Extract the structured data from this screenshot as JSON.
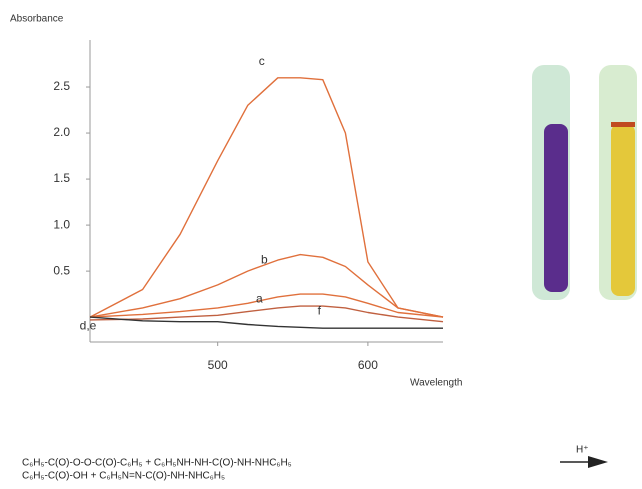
{
  "chart_data": {
    "type": "line",
    "y_label": "Absorbance",
    "x_label": "Wavelength",
    "x": [
      415,
      450,
      475,
      500,
      520,
      540,
      555,
      570,
      585,
      600,
      620,
      650
    ],
    "series": [
      {
        "name": "c",
        "color": "#e0703c",
        "values": [
          0.0,
          0.3,
          0.9,
          1.7,
          2.3,
          2.6,
          2.6,
          2.58,
          2.0,
          0.6,
          0.1,
          0.0
        ]
      },
      {
        "name": "b",
        "color": "#e0703c",
        "values": [
          0.0,
          0.1,
          0.2,
          0.35,
          0.5,
          0.62,
          0.68,
          0.65,
          0.55,
          0.35,
          0.1,
          0.0
        ]
      },
      {
        "name": "a",
        "color": "#e0703c",
        "values": [
          0.0,
          0.03,
          0.06,
          0.1,
          0.15,
          0.22,
          0.25,
          0.25,
          0.22,
          0.15,
          0.05,
          0.0
        ]
      },
      {
        "name": "f",
        "color": "#c06040",
        "values": [
          -0.03,
          -0.02,
          0.0,
          0.02,
          0.06,
          0.1,
          0.12,
          0.12,
          0.1,
          0.05,
          0.0,
          -0.05
        ]
      },
      {
        "name": "d,e",
        "color": "#333333",
        "values": [
          0.0,
          -0.04,
          -0.05,
          -0.05,
          -0.08,
          -0.1,
          -0.11,
          -0.12,
          -0.12,
          -0.12,
          -0.12,
          -0.12
        ]
      }
    ],
    "xlim": [
      415,
      650
    ],
    "xticks": [
      500,
      600
    ],
    "ylim": [
      -0.27,
      3.0
    ],
    "yticks": [
      0.5,
      {
        "value": 1,
        "label": "1.0"
      },
      1.5,
      {
        "value": 2,
        "label": "2.0"
      },
      2.5
    ]
  },
  "equation": {
    "lines": [
      "C₆H₅-C(O)-O-O-C(O)-C₆H₅  + C₆H₅NH-NH-C(O)-NH-NHC₆H₅",
      "C₆H₅-C(O)-OH  + C₆H₅N=N-C(O)-NH-NHC₆H₅"
    ],
    "catalyst": "H⁺"
  }
}
